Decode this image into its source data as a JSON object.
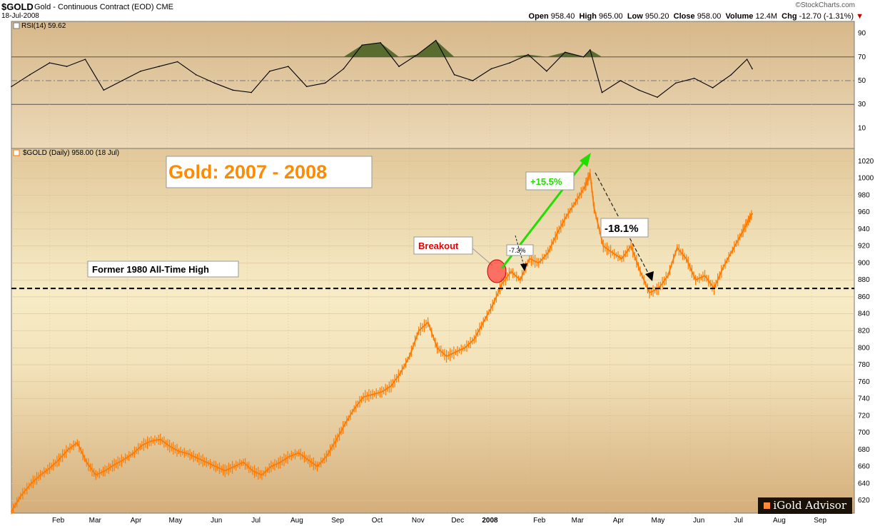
{
  "header": {
    "symbol": "$GOLD",
    "description": "Gold - Continuous Contract (EOD)",
    "exchange": "CME",
    "date": "18-Jul-2008",
    "open_label": "Open",
    "open": "958.40",
    "high_label": "High",
    "high": "965.00",
    "low_label": "Low",
    "low": "950.20",
    "close_label": "Close",
    "close": "958.00",
    "volume_label": "Volume",
    "volume": "12.4M",
    "chg_label": "Chg",
    "chg": "-12.70 (-1.31%)",
    "credit": "©StockCharts.com"
  },
  "rsi_panel": {
    "label": "RSI(14) 59.62",
    "ticks": [
      90,
      70,
      50,
      30,
      10
    ],
    "overbought": 70,
    "oversold": 30
  },
  "price_panel": {
    "label": "$GOLD (Daily) 958.00 (18 Jul)"
  },
  "annotations": {
    "title": "Gold: 2007 - 2008",
    "breakout": "Breakout",
    "ath": "Former 1980 All-Time High",
    "gain": "+15.5%",
    "loss": "-18.1%",
    "dip": "-7.3%"
  },
  "logo": "iGold Advisor",
  "colors": {
    "price": "#ff7a00",
    "rsi": "#000000",
    "rsi_fill": "#5a6b30",
    "title": "#ff8a00",
    "breakout": "#ee0000",
    "gain": "#22dd00",
    "ath_line": "#000000"
  },
  "chart_data": {
    "type": "line",
    "title": "Gold: 2007 - 2008",
    "ylim": [
      605,
      1035
    ],
    "y_ticks": [
      620,
      640,
      660,
      680,
      700,
      720,
      740,
      760,
      780,
      800,
      820,
      840,
      860,
      880,
      900,
      920,
      940,
      960,
      980,
      1000,
      1020
    ],
    "x_tick_labels": [
      "Feb",
      "Mar",
      "Apr",
      "May",
      "Jun",
      "Jul",
      "Aug",
      "Sep",
      "Oct",
      "Nov",
      "Dec",
      "2008",
      "Feb",
      "Mar",
      "Apr",
      "May",
      "Jun",
      "Jul",
      "Aug",
      "Sep"
    ],
    "reference_line": {
      "label": "Former 1980 All-Time High",
      "value": 870
    },
    "series": [
      {
        "name": "$GOLD",
        "x": [
          "2007-01-03",
          "2007-01-10",
          "2007-01-18",
          "2007-01-25",
          "2007-02-01",
          "2007-02-08",
          "2007-02-15",
          "2007-02-22",
          "2007-03-01",
          "2007-03-08",
          "2007-03-15",
          "2007-03-22",
          "2007-03-29",
          "2007-04-05",
          "2007-04-12",
          "2007-04-19",
          "2007-04-26",
          "2007-05-03",
          "2007-05-10",
          "2007-05-17",
          "2007-05-24",
          "2007-05-31",
          "2007-06-07",
          "2007-06-14",
          "2007-06-21",
          "2007-06-28",
          "2007-07-05",
          "2007-07-12",
          "2007-07-19",
          "2007-07-26",
          "2007-08-02",
          "2007-08-09",
          "2007-08-16",
          "2007-08-23",
          "2007-08-30",
          "2007-09-06",
          "2007-09-13",
          "2007-09-20",
          "2007-09-27",
          "2007-10-04",
          "2007-10-11",
          "2007-10-18",
          "2007-10-25",
          "2007-11-01",
          "2007-11-08",
          "2007-11-15",
          "2007-11-22",
          "2007-11-29",
          "2007-12-06",
          "2007-12-13",
          "2007-12-20",
          "2007-12-27",
          "2008-01-03",
          "2008-01-10",
          "2008-01-17",
          "2008-01-24",
          "2008-01-31",
          "2008-02-07",
          "2008-02-14",
          "2008-02-21",
          "2008-02-28",
          "2008-03-06",
          "2008-03-13",
          "2008-03-17",
          "2008-03-20",
          "2008-03-27",
          "2008-04-03",
          "2008-04-10",
          "2008-04-17",
          "2008-04-24",
          "2008-05-01",
          "2008-05-08",
          "2008-05-15",
          "2008-05-22",
          "2008-05-29",
          "2008-06-05",
          "2008-06-12",
          "2008-06-19",
          "2008-06-26",
          "2008-07-03",
          "2008-07-10",
          "2008-07-15",
          "2008-07-18"
        ],
        "values": [
          607,
          625,
          640,
          650,
          658,
          668,
          680,
          688,
          665,
          650,
          655,
          662,
          668,
          675,
          685,
          690,
          692,
          684,
          678,
          675,
          670,
          665,
          660,
          655,
          660,
          665,
          655,
          650,
          660,
          665,
          672,
          676,
          668,
          660,
          672,
          690,
          710,
          728,
          742,
          745,
          748,
          755,
          770,
          790,
          820,
          830,
          800,
          790,
          795,
          800,
          810,
          830,
          850,
          875,
          890,
          880,
          905,
          900,
          912,
          935,
          955,
          972,
          990,
          1005,
          965,
          920,
          912,
          905,
          920,
          890,
          865,
          870,
          885,
          918,
          905,
          880,
          885,
          870,
          895,
          915,
          935,
          950,
          958
        ]
      }
    ],
    "rsi": {
      "name": "RSI(14)",
      "last": 59.62,
      "x": [
        "2007-01-03",
        "2007-01-17",
        "2007-02-01",
        "2007-02-14",
        "2007-02-28",
        "2007-03-14",
        "2007-03-28",
        "2007-04-11",
        "2007-04-25",
        "2007-05-09",
        "2007-05-23",
        "2007-06-06",
        "2007-06-20",
        "2007-07-04",
        "2007-07-18",
        "2007-08-01",
        "2007-08-15",
        "2007-08-29",
        "2007-09-12",
        "2007-09-26",
        "2007-10-10",
        "2007-10-24",
        "2007-11-07",
        "2007-11-21",
        "2007-12-05",
        "2007-12-19",
        "2008-01-02",
        "2008-01-16",
        "2008-01-30",
        "2008-02-13",
        "2008-02-27",
        "2008-03-12",
        "2008-03-17",
        "2008-03-26",
        "2008-04-09",
        "2008-04-23",
        "2008-05-07",
        "2008-05-21",
        "2008-06-04",
        "2008-06-18",
        "2008-07-02",
        "2008-07-14",
        "2008-07-18"
      ],
      "values": [
        45,
        55,
        65,
        62,
        68,
        42,
        50,
        58,
        62,
        66,
        55,
        48,
        42,
        40,
        58,
        62,
        45,
        48,
        60,
        80,
        82,
        62,
        72,
        84,
        55,
        50,
        60,
        65,
        72,
        58,
        74,
        70,
        76,
        40,
        50,
        42,
        36,
        48,
        52,
        44,
        55,
        68,
        60
      ]
    },
    "annotations": [
      {
        "text": "+15.5%"
      },
      {
        "text": "-18.1%"
      },
      {
        "text": "-7.3%"
      },
      {
        "text": "Breakout"
      }
    ]
  }
}
